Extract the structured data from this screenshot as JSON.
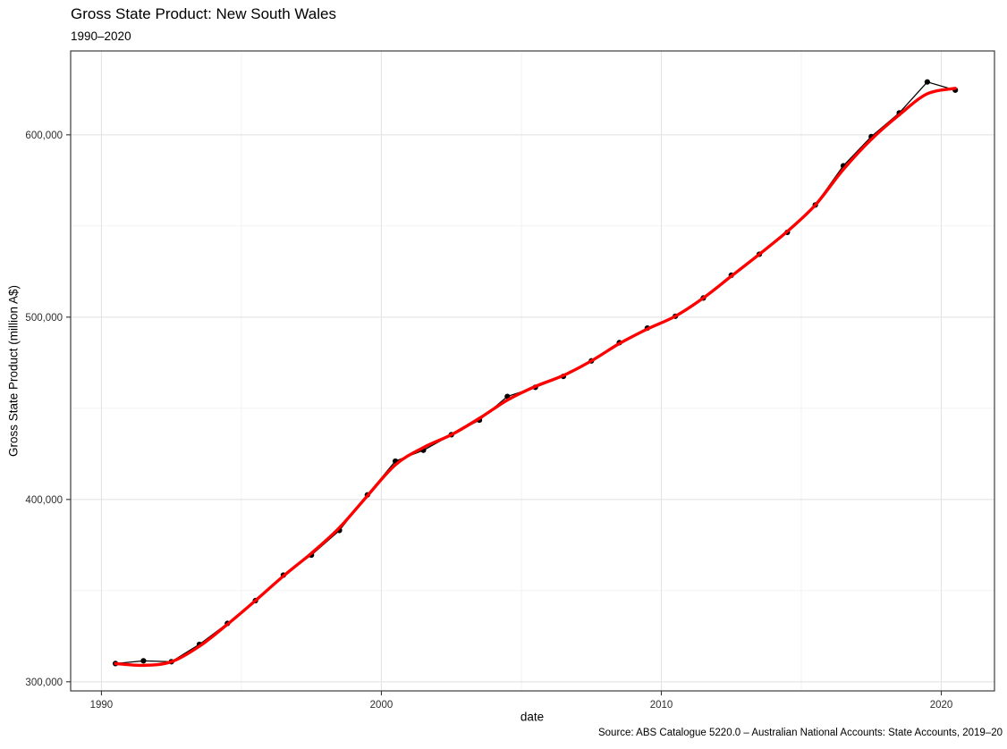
{
  "chart_data": {
    "type": "line",
    "title": "Gross State Product: New South Wales",
    "subtitle": "1990–2020",
    "caption": "Source: ABS Catalogue 5220.0 – Australian National Accounts: State Accounts, 2019–20",
    "xlabel": "date",
    "ylabel": "Gross State Product (million A$)",
    "legend": "none",
    "grid": "major+minor",
    "xlim": [
      1988.9,
      2021.9
    ],
    "ylim": [
      295000,
      646000
    ],
    "x_ticks": {
      "values": [
        1990,
        2000,
        2010,
        2020
      ],
      "labels": [
        "1990",
        "2000",
        "2010",
        "2020"
      ]
    },
    "y_ticks": {
      "values": [
        300000,
        400000,
        500000,
        600000
      ],
      "labels": [
        "300,000",
        "400,000",
        "500,000",
        "600,000"
      ]
    },
    "x_minor": [
      1995,
      2005,
      2015
    ],
    "y_minor": [
      350000,
      450000,
      550000
    ],
    "x": [
      1990.5,
      1991.5,
      1992.5,
      1993.5,
      1994.5,
      1995.5,
      1996.5,
      1997.5,
      1998.5,
      1999.5,
      2000.5,
      2001.5,
      2002.5,
      2003.5,
      2004.5,
      2005.5,
      2006.5,
      2007.5,
      2008.5,
      2009.5,
      2010.5,
      2011.5,
      2012.5,
      2013.5,
      2014.5,
      2015.5,
      2016.5,
      2017.5,
      2018.5,
      2019.5,
      2020.5
    ],
    "series": [
      {
        "name": "GSP observed (points + line)",
        "style": "points-line",
        "color": "#000000",
        "values": [
          310000,
          311500,
          311000,
          320500,
          332000,
          344500,
          358500,
          369500,
          383000,
          402500,
          421000,
          427000,
          435500,
          443500,
          456500,
          461500,
          467500,
          476000,
          486000,
          494000,
          500500,
          510500,
          523000,
          534500,
          546500,
          561500,
          583000,
          599000,
          612000,
          629000,
          624500
        ]
      },
      {
        "name": "LOESS smooth",
        "style": "smooth",
        "color": "#ff0000",
        "values": [
          310000,
          309000,
          311000,
          319500,
          331500,
          344500,
          358000,
          370500,
          384500,
          402000,
          419000,
          428500,
          435500,
          444500,
          454500,
          462000,
          468000,
          476000,
          485500,
          493500,
          500500,
          510500,
          522500,
          534500,
          547000,
          561500,
          581000,
          597500,
          611000,
          622500,
          625500
        ]
      }
    ],
    "colors": {
      "points": "#000000",
      "observed_line": "#000000",
      "smooth_line": "#ff0000",
      "grid_major": "#e3e3e3",
      "grid_minor": "#f1f1f1",
      "panel_border": "#3c3c3c",
      "tick_mark": "#333333",
      "tick_text": "#2e2e2e"
    }
  }
}
